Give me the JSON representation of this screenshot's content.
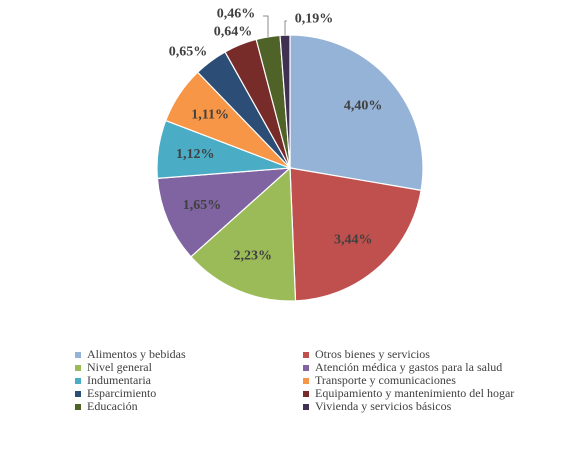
{
  "chart_data": {
    "type": "pie",
    "title": "",
    "categories": [
      "Alimentos y bebidas",
      "Otros bienes y servicios",
      "Nivel general",
      "Atención médica y gastos para la salud",
      "Indumentaria",
      "Transporte y comunicaciones",
      "Esparcimiento",
      "Equipamiento y mantenimiento del hogar",
      "Educación",
      "Vivienda y servicios básicos"
    ],
    "values": [
      4.4,
      3.44,
      2.23,
      1.65,
      1.12,
      1.11,
      0.65,
      0.64,
      0.46,
      0.19
    ],
    "value_labels": [
      "4,40%",
      "3,44%",
      "2,23%",
      "1,65%",
      "1,12%",
      "1,11%",
      "0,65%",
      "0,64%",
      "0,46%",
      "0,19%"
    ],
    "colors": [
      "#95b3d7",
      "#c0504d",
      "#9bbb59",
      "#8064a2",
      "#4bacc6",
      "#f79646",
      "#2c4d75",
      "#772c2a",
      "#4f6228",
      "#403152"
    ],
    "legend_position": "bottom",
    "legend_order": [
      0,
      1,
      2,
      3,
      4,
      5,
      6,
      7,
      8,
      9
    ]
  }
}
